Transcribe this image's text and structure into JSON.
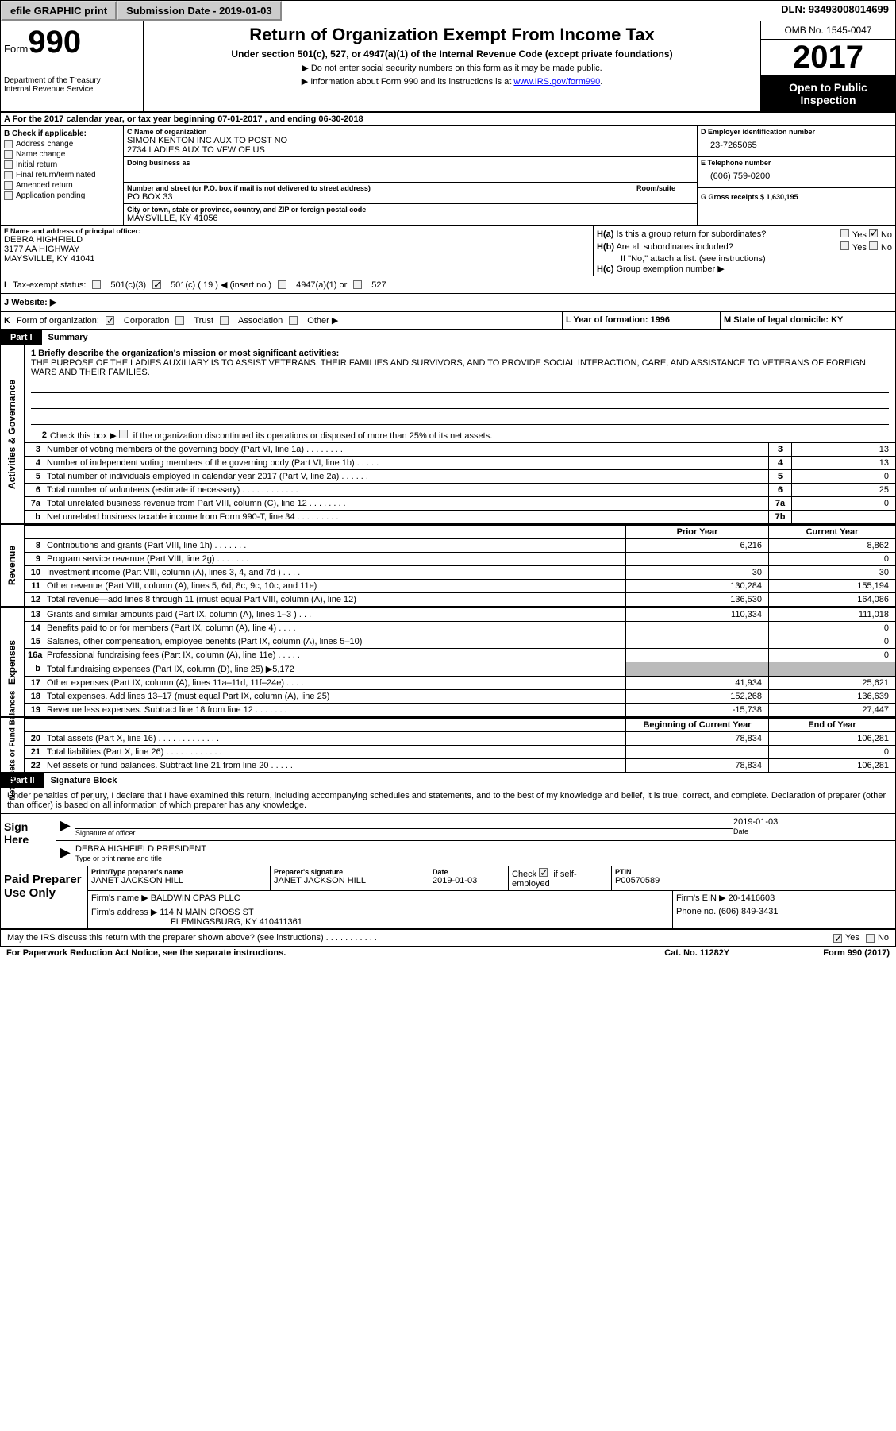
{
  "top": {
    "efile": "efile GRAPHIC print",
    "submission": "Submission Date - 2019-01-03",
    "dln": "DLN: 93493008014699"
  },
  "header": {
    "form_label": "Form",
    "form_num": "990",
    "dept1": "Department of the Treasury",
    "dept2": "Internal Revenue Service",
    "title": "Return of Organization Exempt From Income Tax",
    "subtitle": "Under section 501(c), 527, or 4947(a)(1) of the Internal Revenue Code (except private foundations)",
    "note1": "▶ Do not enter social security numbers on this form as it may be made public.",
    "note2": "▶ Information about Form 990 and its instructions is at ",
    "link": "www.IRS.gov/form990",
    "omb": "OMB No. 1545-0047",
    "year": "2017",
    "inspection1": "Open to Public",
    "inspection2": "Inspection"
  },
  "section_a": {
    "a_text": "A  For the 2017 calendar year, or tax year beginning 07-01-2017   , and ending 06-30-2018",
    "b_label": "B Check if applicable:",
    "b_items": [
      "Address change",
      "Name change",
      "Initial return",
      "Final return/terminated",
      "Amended return",
      "Application pending"
    ],
    "c_label": "C Name of organization",
    "c_name1": "SIMON KENTON INC AUX TO POST NO",
    "c_name2": "2734 LADIES AUX TO VFW OF US",
    "dba_label": "Doing business as",
    "addr_label": "Number and street (or P.O. box if mail is not delivered to street address)",
    "room_label": "Room/suite",
    "addr": "PO BOX 33",
    "city_label": "City or town, state or province, country, and ZIP or foreign postal code",
    "city": "MAYSVILLE, KY  41056",
    "d_label": "D Employer identification number",
    "d_ein": "23-7265065",
    "e_label": "E Telephone number",
    "e_phone": "(606) 759-0200",
    "g_label": "G Gross receipts $ 1,630,195"
  },
  "section_f": {
    "f_label": "F Name and address of principal officer:",
    "f_name": "DEBRA HIGHFIELD",
    "f_addr": "3177 AA HIGHWAY",
    "f_city": "MAYSVILLE, KY  41041",
    "ha_label": "H(a)",
    "ha_text": "Is this a group return for subordinates?",
    "hb_label": "H(b)",
    "hb_text": "Are all subordinates included?",
    "hb_note": "If \"No,\" attach a list. (see instructions)",
    "hc_label": "H(c)",
    "hc_text": "Group exemption number ▶",
    "yes": "Yes",
    "no": "No"
  },
  "row_i": {
    "label": "I",
    "text": "Tax-exempt status:",
    "opt1": "501(c)(3)",
    "opt2": "501(c) ( 19 ) ◀ (insert no.)",
    "opt3": "4947(a)(1) or",
    "opt4": "527"
  },
  "row_j": {
    "label": "J",
    "text": "Website: ▶"
  },
  "row_k": {
    "label": "K",
    "text": "Form of organization:",
    "opts": [
      "Corporation",
      "Trust",
      "Association",
      "Other ▶"
    ],
    "l_text": "L Year of formation: 1996",
    "m_text": "M State of legal domicile: KY"
  },
  "part1": {
    "label": "Part I",
    "title": "Summary"
  },
  "governance": {
    "label": "Activities & Governance",
    "mission_label": "1  Briefly describe the organization's mission or most significant activities:",
    "mission": "THE PURPOSE OF THE LADIES AUXILIARY IS TO ASSIST VETERANS, THEIR FAMILIES AND SURVIVORS, AND TO PROVIDE SOCIAL INTERACTION, CARE, AND ASSISTANCE TO VETERANS OF FOREIGN WARS AND THEIR FAMILIES.",
    "line2": "Check this box ▶      if the organization discontinued its operations or disposed of more than 25% of its net assets.",
    "lines": [
      {
        "n": "3",
        "t": "Number of voting members of the governing body (Part VI, line 1a)  .   .   .   .   .   .   .   .",
        "b": "3",
        "v": "13"
      },
      {
        "n": "4",
        "t": "Number of independent voting members of the governing body (Part VI, line 1b)  .   .   .   .   .",
        "b": "4",
        "v": "13"
      },
      {
        "n": "5",
        "t": "Total number of individuals employed in calendar year 2017 (Part V, line 2a)  .   .   .   .   .   .",
        "b": "5",
        "v": "0"
      },
      {
        "n": "6",
        "t": "Total number of volunteers (estimate if necessary)  .   .   .   .   .   .   .   .   .   .   .   .",
        "b": "6",
        "v": "25"
      },
      {
        "n": "7a",
        "t": "Total unrelated business revenue from Part VIII, column (C), line 12  .   .   .   .   .   .   .   .",
        "b": "7a",
        "v": "0"
      },
      {
        "n": "b",
        "t": "Net unrelated business taxable income from Form 990-T, line 34  .   .   .   .   .   .   .   .   .",
        "b": "7b",
        "v": ""
      }
    ]
  },
  "revenue": {
    "label": "Revenue",
    "hdr_prior": "Prior Year",
    "hdr_curr": "Current Year",
    "lines": [
      {
        "n": "8",
        "t": "Contributions and grants (Part VIII, line 1h)   .    .    .    .    .    .    .",
        "p": "6,216",
        "c": "8,862"
      },
      {
        "n": "9",
        "t": "Program service revenue (Part VIII, line 2g)   .    .    .    .    .    .    .",
        "p": "",
        "c": "0"
      },
      {
        "n": "10",
        "t": "Investment income (Part VIII, column (A), lines 3, 4, and 7d )   .    .    .    .",
        "p": "30",
        "c": "30"
      },
      {
        "n": "11",
        "t": "Other revenue (Part VIII, column (A), lines 5, 6d, 8c, 9c, 10c, and 11e)",
        "p": "130,284",
        "c": "155,194"
      },
      {
        "n": "12",
        "t": "Total revenue—add lines 8 through 11 (must equal Part VIII, column (A), line 12)",
        "p": "136,530",
        "c": "164,086"
      }
    ]
  },
  "expenses": {
    "label": "Expenses",
    "lines": [
      {
        "n": "13",
        "t": "Grants and similar amounts paid (Part IX, column (A), lines 1–3 )  .    .    .",
        "p": "110,334",
        "c": "111,018"
      },
      {
        "n": "14",
        "t": "Benefits paid to or for members (Part IX, column (A), line 4)   .    .    .    .",
        "p": "",
        "c": "0"
      },
      {
        "n": "15",
        "t": "Salaries, other compensation, employee benefits (Part IX, column (A), lines 5–10)",
        "p": "",
        "c": "0"
      },
      {
        "n": "16a",
        "t": "Professional fundraising fees (Part IX, column (A), line 11e)   .    .    .    .    .",
        "p": "",
        "c": "0"
      },
      {
        "n": "b",
        "t": "Total fundraising expenses (Part IX, column (D), line 25) ▶5,172",
        "p": "grey",
        "c": "grey"
      },
      {
        "n": "17",
        "t": "Other expenses (Part IX, column (A), lines 11a–11d, 11f–24e)   .    .    .    .",
        "p": "41,934",
        "c": "25,621"
      },
      {
        "n": "18",
        "t": "Total expenses. Add lines 13–17 (must equal Part IX, column (A), line 25)",
        "p": "152,268",
        "c": "136,639"
      },
      {
        "n": "19",
        "t": "Revenue less expenses. Subtract line 18 from line 12 .    .    .    .    .    .    .",
        "p": "-15,738",
        "c": "27,447"
      }
    ]
  },
  "netassets": {
    "label": "Net Assets or Fund Balances",
    "hdr_begin": "Beginning of Current Year",
    "hdr_end": "End of Year",
    "lines": [
      {
        "n": "20",
        "t": "Total assets (Part X, line 16) .    .    .    .    .    .    .    .    .    .    .    .    .",
        "p": "78,834",
        "c": "106,281"
      },
      {
        "n": "21",
        "t": "Total liabilities (Part X, line 26) .    .    .    .    .    .    .    .    .    .    .    .",
        "p": "",
        "c": "0"
      },
      {
        "n": "22",
        "t": "Net assets or fund balances. Subtract line 21 from line 20  .    .    .    .    .",
        "p": "78,834",
        "c": "106,281"
      }
    ]
  },
  "part2": {
    "label": "Part II",
    "title": "Signature Block",
    "declaration": "Under penalties of perjury, I declare that I have examined this return, including accompanying schedules and statements, and to the best of my knowledge and belief, it is true, correct, and complete. Declaration of preparer (other than officer) is based on all information of which preparer has any knowledge."
  },
  "sign": {
    "label": "Sign Here",
    "sig_label": "Signature of officer",
    "date_label": "Date",
    "date": "2019-01-03",
    "name": "DEBRA HIGHFIELD  PRESIDENT",
    "name_label": "Type or print name and title"
  },
  "preparer": {
    "label": "Paid Preparer Use Only",
    "name_label": "Print/Type preparer's name",
    "name": "JANET JACKSON HILL",
    "sig_label": "Preparer's signature",
    "sig": "JANET JACKSON HILL",
    "date_label": "Date",
    "date": "2019-01-03",
    "check_label": "Check",
    "check_text": "if self-employed",
    "ptin_label": "PTIN",
    "ptin": "P00570589",
    "firm_label": "Firm's name    ▶",
    "firm": "BALDWIN CPAS PLLC",
    "ein_label": "Firm's EIN ▶",
    "ein": "20-1416603",
    "addr_label": "Firm's address ▶",
    "addr1": "114 N MAIN CROSS ST",
    "addr2": "FLEMINGSBURG, KY  410411361",
    "phone_label": "Phone no.",
    "phone": "(606) 849-3431"
  },
  "footer": {
    "discuss": "May the IRS discuss this return with the preparer shown above? (see instructions)   .    .    .    .    .    .    .    .    .    .    .",
    "yes": "Yes",
    "no": "No",
    "paperwork": "For Paperwork Reduction Act Notice, see the separate instructions.",
    "cat": "Cat. No. 11282Y",
    "form": "Form 990 (2017)"
  }
}
